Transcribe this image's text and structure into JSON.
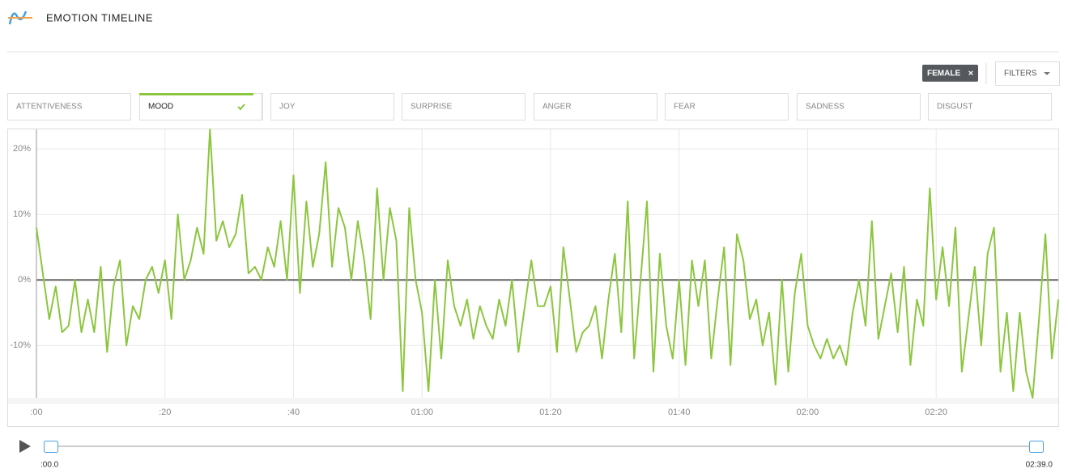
{
  "header": {
    "title": "EMOTION TIMELINE"
  },
  "filters": {
    "tag": "FEMALE",
    "button": "FILTERS"
  },
  "tabs": [
    {
      "label": "ATTENTIVENESS"
    },
    {
      "label": "MOOD",
      "active": true
    },
    {
      "label": "JOY"
    },
    {
      "label": "SURPRISE"
    },
    {
      "label": "ANGER"
    },
    {
      "label": "FEAR"
    },
    {
      "label": "SADNESS"
    },
    {
      "label": "DISGUST"
    }
  ],
  "chart_data": {
    "type": "line",
    "color": "#8cc63f",
    "grid": true,
    "x": [
      0,
      1,
      2,
      3,
      4,
      5,
      6,
      7,
      8,
      9,
      10,
      11,
      12,
      13,
      14,
      15,
      16,
      17,
      18,
      19,
      20,
      21,
      22,
      23,
      24,
      25,
      26,
      27,
      28,
      29,
      30,
      31,
      32,
      33,
      34,
      35,
      36,
      37,
      38,
      39,
      40,
      41,
      42,
      43,
      44,
      45,
      46,
      47,
      48,
      49,
      50,
      51,
      52,
      53,
      54,
      55,
      56,
      57,
      58,
      59,
      60,
      61,
      62,
      63,
      64,
      65,
      66,
      67,
      68,
      69,
      70,
      71,
      72,
      73,
      74,
      75,
      76,
      77,
      78,
      79,
      80,
      81,
      82,
      83,
      84,
      85,
      86,
      87,
      88,
      89,
      90,
      91,
      92,
      93,
      94,
      95,
      96,
      97,
      98,
      99,
      100,
      101,
      102,
      103,
      104,
      105,
      106,
      107,
      108,
      109,
      110,
      111,
      112,
      113,
      114,
      115,
      116,
      117,
      118,
      119,
      120,
      121,
      122,
      123,
      124,
      125,
      126,
      127,
      128,
      129,
      130,
      131,
      132,
      133,
      134,
      135,
      136,
      137,
      138,
      139,
      140,
      141,
      142,
      143,
      144,
      145,
      146,
      147,
      148,
      149,
      150,
      151,
      152,
      153,
      154,
      155,
      156,
      157,
      158,
      159
    ],
    "values": [
      8,
      1,
      -6,
      -1,
      -8,
      -7,
      0,
      -8,
      -3,
      -8,
      2,
      -11,
      -1,
      3,
      -10,
      -4,
      -6,
      0,
      2,
      -2,
      3,
      -6,
      10,
      0,
      3,
      8,
      4,
      23,
      6,
      9,
      5,
      7,
      13,
      1,
      2,
      0,
      5,
      2,
      9,
      0,
      16,
      -2,
      12,
      2,
      7,
      18,
      2,
      11,
      8,
      0,
      9,
      3,
      -6,
      14,
      0,
      11,
      6,
      -17,
      11,
      0,
      -5,
      -17,
      0,
      -12,
      3,
      -4,
      -7,
      -3,
      -9,
      -4,
      -7,
      -9,
      -3,
      -7,
      0,
      -11,
      -4,
      3,
      -4,
      -4,
      -1,
      -11,
      5,
      -3,
      -11,
      -8,
      -7,
      -4,
      -12,
      -3,
      4,
      -8,
      12,
      -12,
      0,
      12,
      -14,
      4,
      -7,
      -12,
      0,
      -13,
      3,
      -4,
      3,
      -12,
      -3,
      5,
      -13,
      7,
      3,
      -6,
      -3,
      -10,
      -5,
      -16,
      0,
      -14,
      -2,
      4,
      -7,
      -10,
      -12,
      -9,
      -12,
      -10,
      -13,
      -5,
      0,
      -7,
      9,
      -9,
      -4,
      1,
      -8,
      2,
      -13,
      -3,
      -7,
      14,
      -3,
      5,
      -4,
      8,
      -14,
      -6,
      2,
      -10,
      4,
      8,
      -14,
      -5,
      -17,
      -5,
      -14,
      -18,
      -6,
      7,
      -12,
      -3
    ],
    "xlim": [
      0,
      159
    ],
    "ylim": [
      -18,
      23
    ],
    "xticks": [
      {
        "value": 0,
        "label": ":00"
      },
      {
        "value": 20,
        "label": ":20"
      },
      {
        "value": 40,
        "label": ":40"
      },
      {
        "value": 60,
        "label": "01:00"
      },
      {
        "value": 80,
        "label": "01:20"
      },
      {
        "value": 100,
        "label": "01:40"
      },
      {
        "value": 120,
        "label": "02:00"
      },
      {
        "value": 140,
        "label": "02:20"
      }
    ],
    "yticks": [
      {
        "value": -10,
        "label": "-10%"
      },
      {
        "value": 0,
        "label": "0%"
      },
      {
        "value": 10,
        "label": "10%"
      },
      {
        "value": 20,
        "label": "20%"
      }
    ]
  },
  "playback": {
    "start": ":00.0",
    "end": "02:39.0"
  }
}
